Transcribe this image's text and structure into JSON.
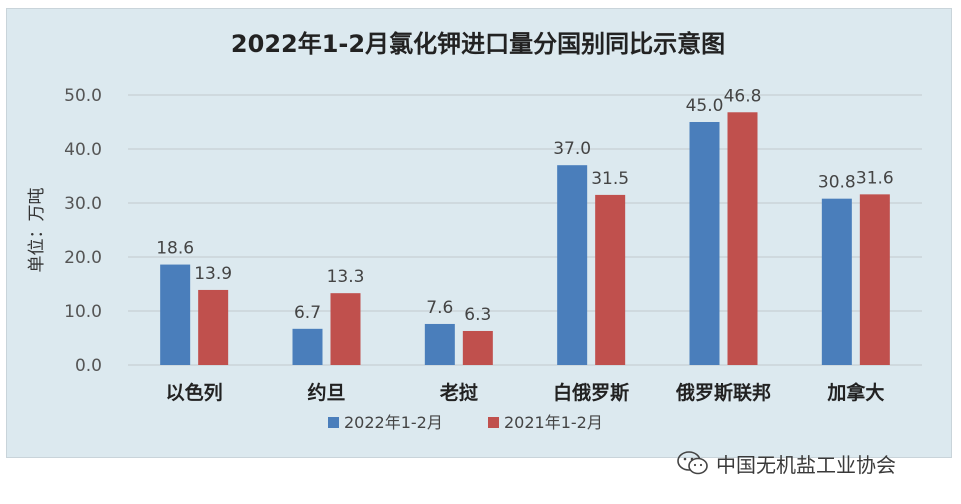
{
  "chart_data": {
    "type": "bar",
    "title": "2022年1-2月氯化钾进口量分国别同比示意图",
    "ylabel": "单位：万吨",
    "xlabel": "",
    "ylim": [
      0,
      50
    ],
    "yticks": [
      "0.0",
      "10.0",
      "20.0",
      "30.0",
      "40.0",
      "50.0"
    ],
    "grid": true,
    "legend_position": "bottom",
    "categories": [
      "以色列",
      "约旦",
      "老挝",
      "白俄罗斯",
      "俄罗斯联邦",
      "加拿大"
    ],
    "series": [
      {
        "name": "2022年1-2月",
        "color": "#4a7ebb",
        "values": [
          18.6,
          6.7,
          7.6,
          37.0,
          45.0,
          30.8
        ]
      },
      {
        "name": "2021年1-2月",
        "color": "#c0504d",
        "values": [
          13.9,
          13.3,
          6.3,
          31.5,
          46.8,
          31.6
        ]
      }
    ]
  },
  "watermark": {
    "text": "中国无机盐工业协会",
    "icon": "wechat-icon"
  }
}
